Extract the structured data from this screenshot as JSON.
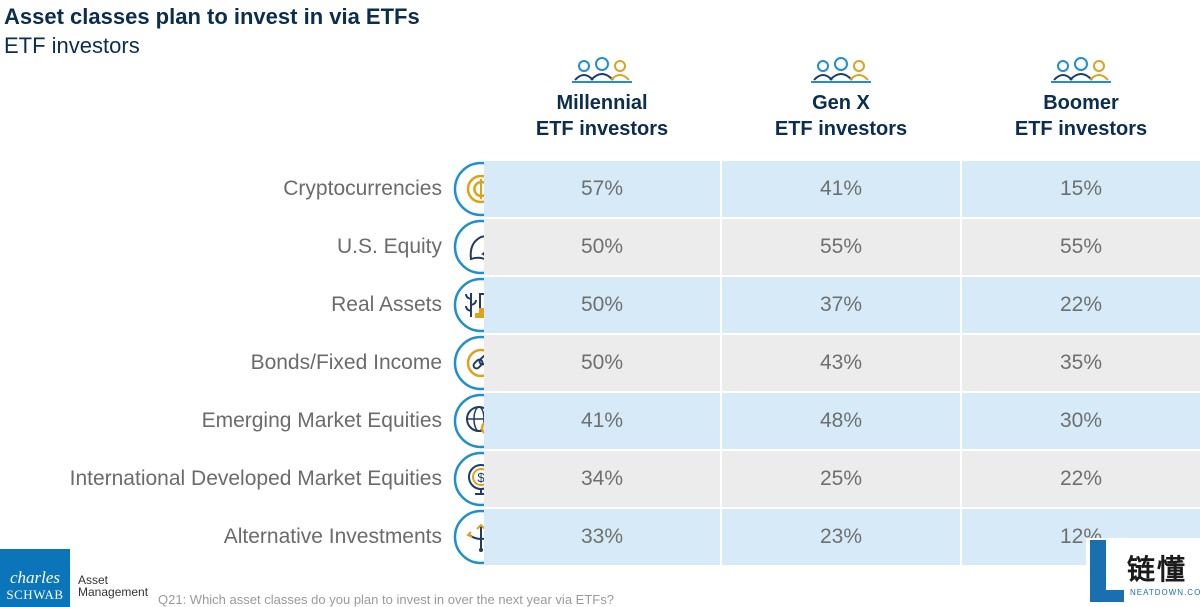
{
  "header": {
    "title": "Asset classes plan to invest in via ETFs",
    "subtitle": "ETF investors"
  },
  "columns": [
    {
      "line1": "Millennial",
      "line2": "ETF investors",
      "icon": "people-group-icon"
    },
    {
      "line1": "Gen X",
      "line2": "ETF investors",
      "icon": "people-group-icon"
    },
    {
      "line1": "Boomer",
      "line2": "ETF investors",
      "icon": "people-group-icon"
    }
  ],
  "chart_data": {
    "type": "table",
    "title": "Asset classes plan to invest in via ETFs",
    "subtitle": "ETF investors",
    "columns": [
      "Millennial ETF investors",
      "Gen X ETF investors",
      "Boomer ETF investors"
    ],
    "rows": [
      {
        "label": "Cryptocurrencies",
        "icon": "crypto-coin-icon",
        "values": [
          "57%",
          "41%",
          "15%"
        ]
      },
      {
        "label": "U.S. Equity",
        "icon": "eagle-icon",
        "values": [
          "50%",
          "55%",
          "55%"
        ]
      },
      {
        "label": "Real Assets",
        "icon": "real-assets-icon",
        "values": [
          "50%",
          "37%",
          "22%"
        ]
      },
      {
        "label": "Bonds/Fixed Income",
        "icon": "chain-link-icon",
        "values": [
          "50%",
          "43%",
          "35%"
        ]
      },
      {
        "label": "Emerging Market Equities",
        "icon": "globe-search-icon",
        "values": [
          "41%",
          "48%",
          "30%"
        ]
      },
      {
        "label": "International Developed Market Equities",
        "icon": "dollar-globe-icon",
        "values": [
          "34%",
          "25%",
          "22%"
        ]
      },
      {
        "label": "Alternative Investments",
        "icon": "branching-arrows-icon",
        "values": [
          "33%",
          "23%",
          "12%"
        ]
      }
    ]
  },
  "colors": {
    "title": "#0b2d4f",
    "row_blue": "#d6ebf7",
    "row_grey": "#ececec",
    "icon_ring": "#1f8fd0",
    "icon_accent": "#e0a21a",
    "icon_navy": "#1f3b66",
    "brand": "#0a75b8"
  },
  "footer": {
    "brand_line1": "charles",
    "brand_line2": "SCHWAB",
    "brand_sub_line1": "Asset",
    "brand_sub_line2": "Management",
    "footnote": "Q21: Which asset classes do you plan to invest in over the next year via ETFs?"
  },
  "watermark": {
    "text": "链懂",
    "sub": "NEATDOWN.COM"
  }
}
